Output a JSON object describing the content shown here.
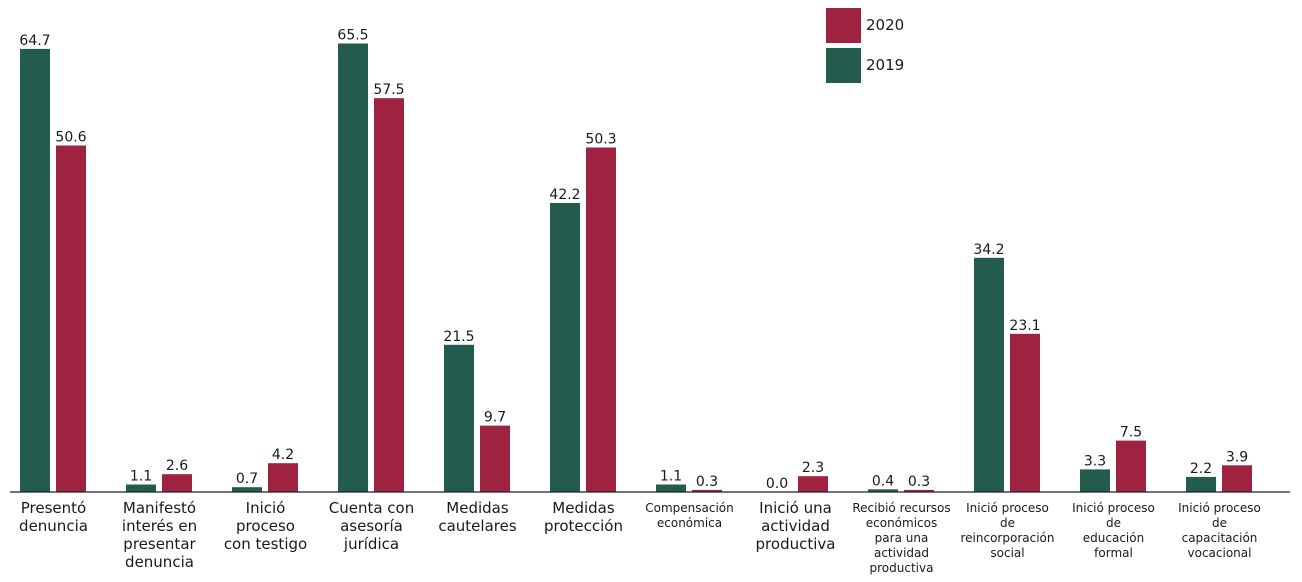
{
  "chart_data": {
    "type": "bar",
    "categories": [
      [
        "Presentó",
        "denuncia"
      ],
      [
        "Manifestó",
        "interés en",
        "presentar",
        "denuncia"
      ],
      [
        "Inició",
        "proceso",
        "con testigo"
      ],
      [
        "Cuenta con",
        "asesoría",
        "jurídica"
      ],
      [
        "Medidas",
        "cautelares"
      ],
      [
        "Medidas",
        "protección"
      ],
      [
        "Compensación",
        "económica"
      ],
      [
        "Inició una",
        "actividad",
        "productiva"
      ],
      [
        "Recibió recursos",
        "económicos",
        "para una",
        "actividad",
        "productiva"
      ],
      [
        "Inició proceso",
        "de",
        "reincorporación",
        "social"
      ],
      [
        "Inició proceso",
        "de",
        "educación",
        "formal"
      ],
      [
        "Inició proceso",
        "de",
        "capacitación",
        "vocacional"
      ]
    ],
    "series": [
      {
        "name": "2019",
        "color": "#235b4e",
        "values": [
          64.7,
          1.1,
          0.7,
          65.5,
          21.5,
          42.2,
          1.1,
          0.0,
          0.4,
          34.2,
          3.3,
          2.2
        ]
      },
      {
        "name": "2020",
        "color": "#9f2241",
        "values": [
          50.6,
          2.6,
          4.2,
          57.5,
          9.7,
          50.3,
          0.3,
          2.3,
          0.3,
          23.1,
          7.5,
          3.9
        ]
      }
    ],
    "value_labels": {
      "2019": [
        "64.7",
        "1.1",
        "0.7",
        "65.5",
        "21.5",
        "42.2",
        "1.1",
        "0.0",
        "0.4",
        "34.2",
        "3.3",
        "2.2"
      ],
      "2020": [
        "50.6",
        "2.6",
        "4.2",
        "57.5",
        "9.7",
        "50.3",
        "0.3",
        "2.3",
        "0.3",
        "23.1",
        "7.5",
        "3.9"
      ]
    },
    "legend": [
      "2020",
      "2019"
    ],
    "legend_position": "top-center",
    "grid": false,
    "ylim": [
      0,
      70
    ]
  }
}
